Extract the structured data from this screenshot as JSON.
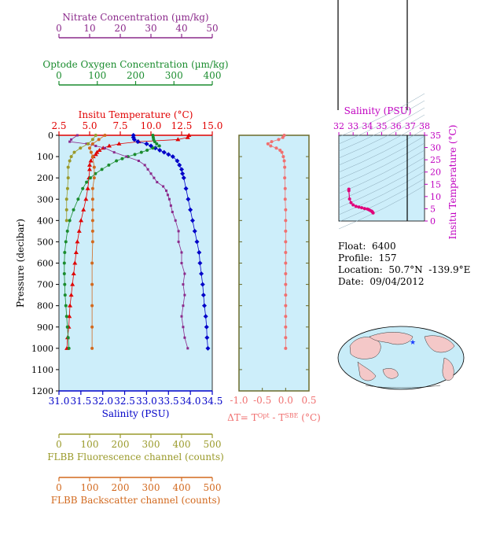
{
  "chart_data": [
    {
      "type": "scatter",
      "title": "",
      "axes": {
        "nitrate": {
          "label": "Nitrate Concentration (µm/kg)",
          "range": [
            0,
            50
          ],
          "ticks": [
            0,
            10,
            20,
            30,
            40,
            50
          ],
          "color": "#8b2a8b"
        },
        "oxygen": {
          "label": "Optode Oxygen Concentration (µm/kg)",
          "range": [
            0,
            400
          ],
          "ticks": [
            0,
            100,
            200,
            300,
            400
          ],
          "color": "#1a8c2e"
        },
        "temperature": {
          "label": "Insitu Temperature (°C)",
          "range": [
            2.5,
            15.0
          ],
          "ticks": [
            "2.5",
            "5.0",
            "7.5",
            "10.0",
            "12.5",
            "15.0"
          ],
          "color": "#e00000"
        },
        "salinity": {
          "label": "Salinity (PSU)",
          "range": [
            31.0,
            34.5
          ],
          "ticks": [
            "31.0",
            "31.5",
            "32.0",
            "32.5",
            "33.0",
            "33.5",
            "34.0",
            "34.5"
          ],
          "color": "#0000c8"
        },
        "fluorescence": {
          "label": "FLBB Fluorescence channel (counts)",
          "range": [
            0,
            500
          ],
          "ticks": [
            0,
            100,
            200,
            300,
            400,
            500
          ],
          "color": "#9a9a2a"
        },
        "backscatter": {
          "label": "FLBB Backscatter channel (counts)",
          "range": [
            0,
            500
          ],
          "ticks": [
            0,
            100,
            200,
            300,
            400,
            500
          ],
          "color": "#d2691e"
        },
        "pressure": {
          "label": "Pressure (decibar)",
          "range": [
            0,
            1200
          ],
          "ticks": [
            0,
            100,
            200,
            300,
            400,
            500,
            600,
            700,
            800,
            900,
            1000,
            1100,
            1200
          ]
        }
      },
      "series": [
        {
          "name": "Insitu Temperature",
          "axis": "temperature",
          "color": "#e00000",
          "points": [
            [
              0,
              13.1
            ],
            [
              10,
              13.0
            ],
            [
              20,
              12.2
            ],
            [
              30,
              9.0
            ],
            [
              40,
              7.4
            ],
            [
              50,
              6.6
            ],
            [
              60,
              6.1
            ],
            [
              70,
              5.8
            ],
            [
              80,
              5.6
            ],
            [
              90,
              5.5
            ],
            [
              100,
              5.3
            ],
            [
              120,
              5.1
            ],
            [
              140,
              5.0
            ],
            [
              160,
              5.0
            ],
            [
              200,
              4.95
            ],
            [
              250,
              4.85
            ],
            [
              300,
              4.7
            ],
            [
              350,
              4.5
            ],
            [
              400,
              4.3
            ],
            [
              450,
              4.15
            ],
            [
              500,
              4.0
            ],
            [
              550,
              3.9
            ],
            [
              600,
              3.8
            ],
            [
              650,
              3.7
            ],
            [
              700,
              3.6
            ],
            [
              750,
              3.5
            ],
            [
              800,
              3.4
            ],
            [
              850,
              3.35
            ],
            [
              900,
              3.3
            ],
            [
              950,
              3.2
            ],
            [
              1000,
              3.15
            ]
          ]
        },
        {
          "name": "Salinity",
          "axis": "salinity",
          "color": "#0000c8",
          "points": [
            [
              0,
              32.7
            ],
            [
              10,
              32.7
            ],
            [
              20,
              32.72
            ],
            [
              30,
              32.8
            ],
            [
              40,
              33.0
            ],
            [
              50,
              33.1
            ],
            [
              60,
              33.2
            ],
            [
              70,
              33.3
            ],
            [
              80,
              33.4
            ],
            [
              90,
              33.5
            ],
            [
              100,
              33.6
            ],
            [
              120,
              33.7
            ],
            [
              140,
              33.75
            ],
            [
              160,
              33.8
            ],
            [
              180,
              33.82
            ],
            [
              200,
              33.85
            ],
            [
              250,
              33.9
            ],
            [
              300,
              33.95
            ],
            [
              350,
              34.0
            ],
            [
              400,
              34.05
            ],
            [
              450,
              34.1
            ],
            [
              500,
              34.15
            ],
            [
              550,
              34.2
            ],
            [
              600,
              34.22
            ],
            [
              650,
              34.25
            ],
            [
              700,
              34.28
            ],
            [
              750,
              34.3
            ],
            [
              800,
              34.32
            ],
            [
              850,
              34.35
            ],
            [
              900,
              34.37
            ],
            [
              950,
              34.38
            ],
            [
              1000,
              34.4
            ]
          ]
        },
        {
          "name": "Optode Oxygen",
          "axis": "oxygen",
          "color": "#1a8c2e",
          "points": [
            [
              0,
              245
            ],
            [
              10,
              246
            ],
            [
              20,
              247
            ],
            [
              30,
              250
            ],
            [
              40,
              255
            ],
            [
              50,
              262
            ],
            [
              60,
              245
            ],
            [
              70,
              230
            ],
            [
              80,
              215
            ],
            [
              90,
              198
            ],
            [
              100,
              180
            ],
            [
              110,
              165
            ],
            [
              120,
              150
            ],
            [
              140,
              130
            ],
            [
              160,
              112
            ],
            [
              180,
              95
            ],
            [
              200,
              82
            ],
            [
              220,
              72
            ],
            [
              250,
              62
            ],
            [
              300,
              50
            ],
            [
              350,
              38
            ],
            [
              400,
              28
            ],
            [
              450,
              22
            ],
            [
              500,
              18
            ],
            [
              550,
              15
            ],
            [
              600,
              14
            ],
            [
              650,
              14
            ],
            [
              700,
              15
            ],
            [
              750,
              16
            ],
            [
              800,
              18
            ],
            [
              850,
              20
            ],
            [
              900,
              22
            ],
            [
              950,
              24
            ],
            [
              1000,
              26
            ]
          ]
        },
        {
          "name": "Nitrate",
          "axis": "nitrate",
          "color": "#8b2a8b",
          "points": [
            [
              0,
              6
            ],
            [
              20,
              4
            ],
            [
              30,
              3.5
            ],
            [
              40,
              9
            ],
            [
              50,
              12
            ],
            [
              60,
              15
            ],
            [
              80,
              18
            ],
            [
              100,
              22
            ],
            [
              120,
              26
            ],
            [
              140,
              28
            ],
            [
              160,
              29
            ],
            [
              180,
              30
            ],
            [
              200,
              31
            ],
            [
              220,
              32
            ],
            [
              240,
              34
            ],
            [
              260,
              35
            ],
            [
              280,
              35.5
            ],
            [
              300,
              36
            ],
            [
              330,
              36.5
            ],
            [
              360,
              37
            ],
            [
              400,
              38
            ],
            [
              450,
              39
            ],
            [
              500,
              39
            ],
            [
              550,
              40
            ],
            [
              600,
              40
            ],
            [
              650,
              41
            ],
            [
              700,
              40.5
            ],
            [
              750,
              41
            ],
            [
              800,
              40.5
            ],
            [
              850,
              40
            ],
            [
              900,
              40.5
            ],
            [
              950,
              41
            ],
            [
              1000,
              42
            ]
          ]
        },
        {
          "name": "FLBB Fluorescence",
          "axis": "fluorescence",
          "color": "#9a9a2a",
          "points": [
            [
              0,
              120
            ],
            [
              20,
              110
            ],
            [
              40,
              95
            ],
            [
              60,
              70
            ],
            [
              80,
              50
            ],
            [
              100,
              40
            ],
            [
              120,
              35
            ],
            [
              150,
              30
            ],
            [
              200,
              30
            ],
            [
              250,
              28
            ],
            [
              300,
              25
            ],
            [
              350,
              25
            ],
            [
              400,
              25
            ]
          ]
        },
        {
          "name": "FLBB Backscatter",
          "axis": "backscatter",
          "color": "#d2691e",
          "points": [
            [
              0,
              150
            ],
            [
              20,
              130
            ],
            [
              40,
              110
            ],
            [
              60,
              100
            ],
            [
              80,
              105
            ],
            [
              100,
              110
            ],
            [
              150,
              115
            ],
            [
              200,
              115
            ],
            [
              250,
              110
            ],
            [
              300,
              110
            ],
            [
              350,
              110
            ],
            [
              400,
              110
            ],
            [
              450,
              110
            ],
            [
              500,
              110
            ],
            [
              600,
              108
            ],
            [
              700,
              108
            ],
            [
              800,
              108
            ],
            [
              900,
              108
            ],
            [
              1000,
              108
            ]
          ]
        }
      ]
    },
    {
      "type": "scatter",
      "title": "",
      "xlabel": "ΔT= T^Opt - T^SBE (°C)",
      "x_ticks": [
        "-1.0",
        "-0.5",
        "0.0",
        "0.5"
      ],
      "xlim": [
        -1.0,
        0.5
      ],
      "ylim": [
        0,
        1200
      ],
      "color": "#f07070",
      "points": [
        [
          0,
          -0.03
        ],
        [
          10,
          -0.06
        ],
        [
          20,
          -0.15
        ],
        [
          30,
          -0.3
        ],
        [
          40,
          -0.38
        ],
        [
          50,
          -0.32
        ],
        [
          60,
          -0.2
        ],
        [
          70,
          -0.12
        ],
        [
          80,
          -0.08
        ],
        [
          100,
          -0.05
        ],
        [
          120,
          -0.03
        ],
        [
          150,
          -0.02
        ],
        [
          200,
          -0.02
        ],
        [
          250,
          -0.01
        ],
        [
          300,
          -0.01
        ],
        [
          350,
          0.0
        ],
        [
          400,
          0.0
        ],
        [
          450,
          0.0
        ],
        [
          500,
          0.0
        ],
        [
          550,
          0.0
        ],
        [
          600,
          0.0
        ],
        [
          650,
          0.0
        ],
        [
          700,
          0.0
        ],
        [
          750,
          0.0
        ],
        [
          800,
          0.0
        ],
        [
          850,
          0.0
        ],
        [
          900,
          0.0
        ],
        [
          950,
          0.0
        ],
        [
          1000,
          0.0
        ]
      ]
    },
    {
      "type": "scatter",
      "title": "",
      "xlabel": "Salinity (PSU)",
      "ylabel": "Insitu Temperature (°C)",
      "x_ticks": [
        "32",
        "33",
        "34",
        "35",
        "36",
        "37",
        "38"
      ],
      "y_ticks": [
        "0",
        "5",
        "10",
        "15",
        "20",
        "25",
        "30",
        "35"
      ],
      "xlim": [
        32,
        38
      ],
      "ylim": [
        0,
        35
      ],
      "color": "#e0007a",
      "points": [
        [
          32.7,
          13.0
        ],
        [
          32.7,
          12.4
        ],
        [
          32.75,
          9.0
        ],
        [
          32.85,
          7.5
        ],
        [
          33.0,
          6.6
        ],
        [
          33.2,
          6.0
        ],
        [
          33.4,
          5.7
        ],
        [
          33.6,
          5.4
        ],
        [
          33.8,
          5.1
        ],
        [
          34.0,
          4.9
        ],
        [
          34.1,
          4.6
        ],
        [
          34.2,
          4.3
        ],
        [
          34.3,
          4.0
        ],
        [
          34.35,
          3.7
        ],
        [
          34.4,
          3.3
        ]
      ]
    }
  ],
  "info": {
    "float": "Float:  6400",
    "profile": "Profile:  157",
    "location": "Location:  50.7°N  -139.9°E",
    "date": "Date:  09/04/2012"
  },
  "map": {
    "marker": "★",
    "marker_color": "#1a3cff"
  }
}
